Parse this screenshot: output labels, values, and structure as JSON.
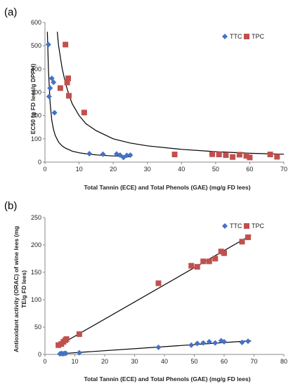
{
  "chart_data": [
    {
      "panel_label": "(a)",
      "type": "scatter",
      "xlabel": "Total Tannin (ECE) and Total Phenols (GAE) (mg/g FD lees)",
      "ylabel": "EC50 (g  FD lees/g DPPH)",
      "xlim": [
        0,
        70
      ],
      "ylim": [
        0,
        600
      ],
      "xticks": [
        "0",
        "10",
        "20",
        "30",
        "40",
        "50",
        "60",
        "70"
      ],
      "yticks": [
        "0",
        "100",
        "200",
        "300",
        "400",
        "500",
        "600"
      ],
      "grid": false,
      "legend_position": "top-right",
      "series": [
        {
          "name": "TTC",
          "marker": "diamond",
          "color": "#4472c4",
          "x": [
            1.0,
            1.2,
            1.5,
            2.0,
            2.5,
            2.8,
            13,
            17,
            21,
            22,
            23,
            24,
            25
          ],
          "y": [
            505,
            282,
            318,
            360,
            343,
            212,
            36,
            34,
            35,
            30,
            20,
            29,
            30
          ]
        },
        {
          "name": "TPC",
          "marker": "square",
          "color": "#c0504d",
          "x": [
            4.5,
            6.0,
            6.5,
            6.8,
            7.0,
            11.5,
            38,
            49,
            51,
            53,
            55,
            57,
            59,
            60,
            66,
            68
          ],
          "y": [
            318,
            505,
            342,
            360,
            285,
            213,
            33,
            34,
            33,
            30,
            22,
            32,
            27,
            20,
            33,
            23
          ]
        }
      ],
      "fit_curves": [
        {
          "series": "TTC",
          "x": [
            0.7,
            1,
            1.5,
            2,
            2.5,
            3,
            4,
            5,
            6,
            8,
            10,
            12,
            15,
            18,
            22,
            25
          ],
          "y": [
            560,
            400,
            255,
            180,
            141,
            115,
            86,
            70,
            60,
            47,
            40,
            36,
            31,
            28,
            25,
            23
          ]
        },
        {
          "series": "TPC",
          "x": [
            3.6,
            4,
            5,
            6,
            7,
            8,
            10,
            12,
            15,
            20,
            25,
            30,
            40,
            50,
            60,
            70
          ],
          "y": [
            560,
            500,
            405,
            340,
            290,
            250,
            200,
            165,
            135,
            100,
            82,
            70,
            55,
            45,
            38,
            34
          ]
        }
      ]
    },
    {
      "panel_label": "(b)",
      "type": "scatter",
      "xlabel": "Total Tannin (ECE) and Total Phenols (GAE) (mg/g FD lees)",
      "ylabel": "Antioxidant activity (ORAC) of wine lees (mg TE/g FD lees)",
      "xlim": [
        0,
        80
      ],
      "ylim": [
        0,
        250
      ],
      "xticks": [
        "0",
        "10",
        "20",
        "30",
        "40",
        "50",
        "60",
        "70",
        "80"
      ],
      "yticks": [
        "0",
        "50",
        "100",
        "150",
        "200",
        "250"
      ],
      "grid": false,
      "legend_position": "top-right",
      "series": [
        {
          "name": "TTC",
          "marker": "diamond",
          "color": "#4472c4",
          "x": [
            5,
            5.5,
            6,
            6.5,
            7,
            11.5,
            38,
            49,
            51,
            53,
            55,
            57,
            59,
            60,
            66,
            68
          ],
          "y": [
            1,
            2,
            1,
            2,
            2,
            3,
            13,
            17,
            20,
            21,
            23,
            21,
            25,
            23,
            22,
            24
          ]
        },
        {
          "name": "TPC",
          "marker": "square",
          "color": "#c0504d",
          "x": [
            4.5,
            5.5,
            6.2,
            6.8,
            7.2,
            11.5,
            38,
            49,
            51,
            53,
            55,
            57,
            59,
            60,
            66,
            68
          ],
          "y": [
            17,
            19,
            23,
            26,
            28,
            37,
            130,
            162,
            160,
            170,
            170,
            175,
            188,
            185,
            206,
            214
          ]
        }
      ],
      "fit_lines": [
        {
          "series": "TTC",
          "x": [
            4.5,
            69
          ],
          "y": [
            1,
            25
          ]
        },
        {
          "series": "TPC",
          "x": [
            4.5,
            69
          ],
          "y": [
            16,
            218
          ]
        }
      ]
    }
  ]
}
